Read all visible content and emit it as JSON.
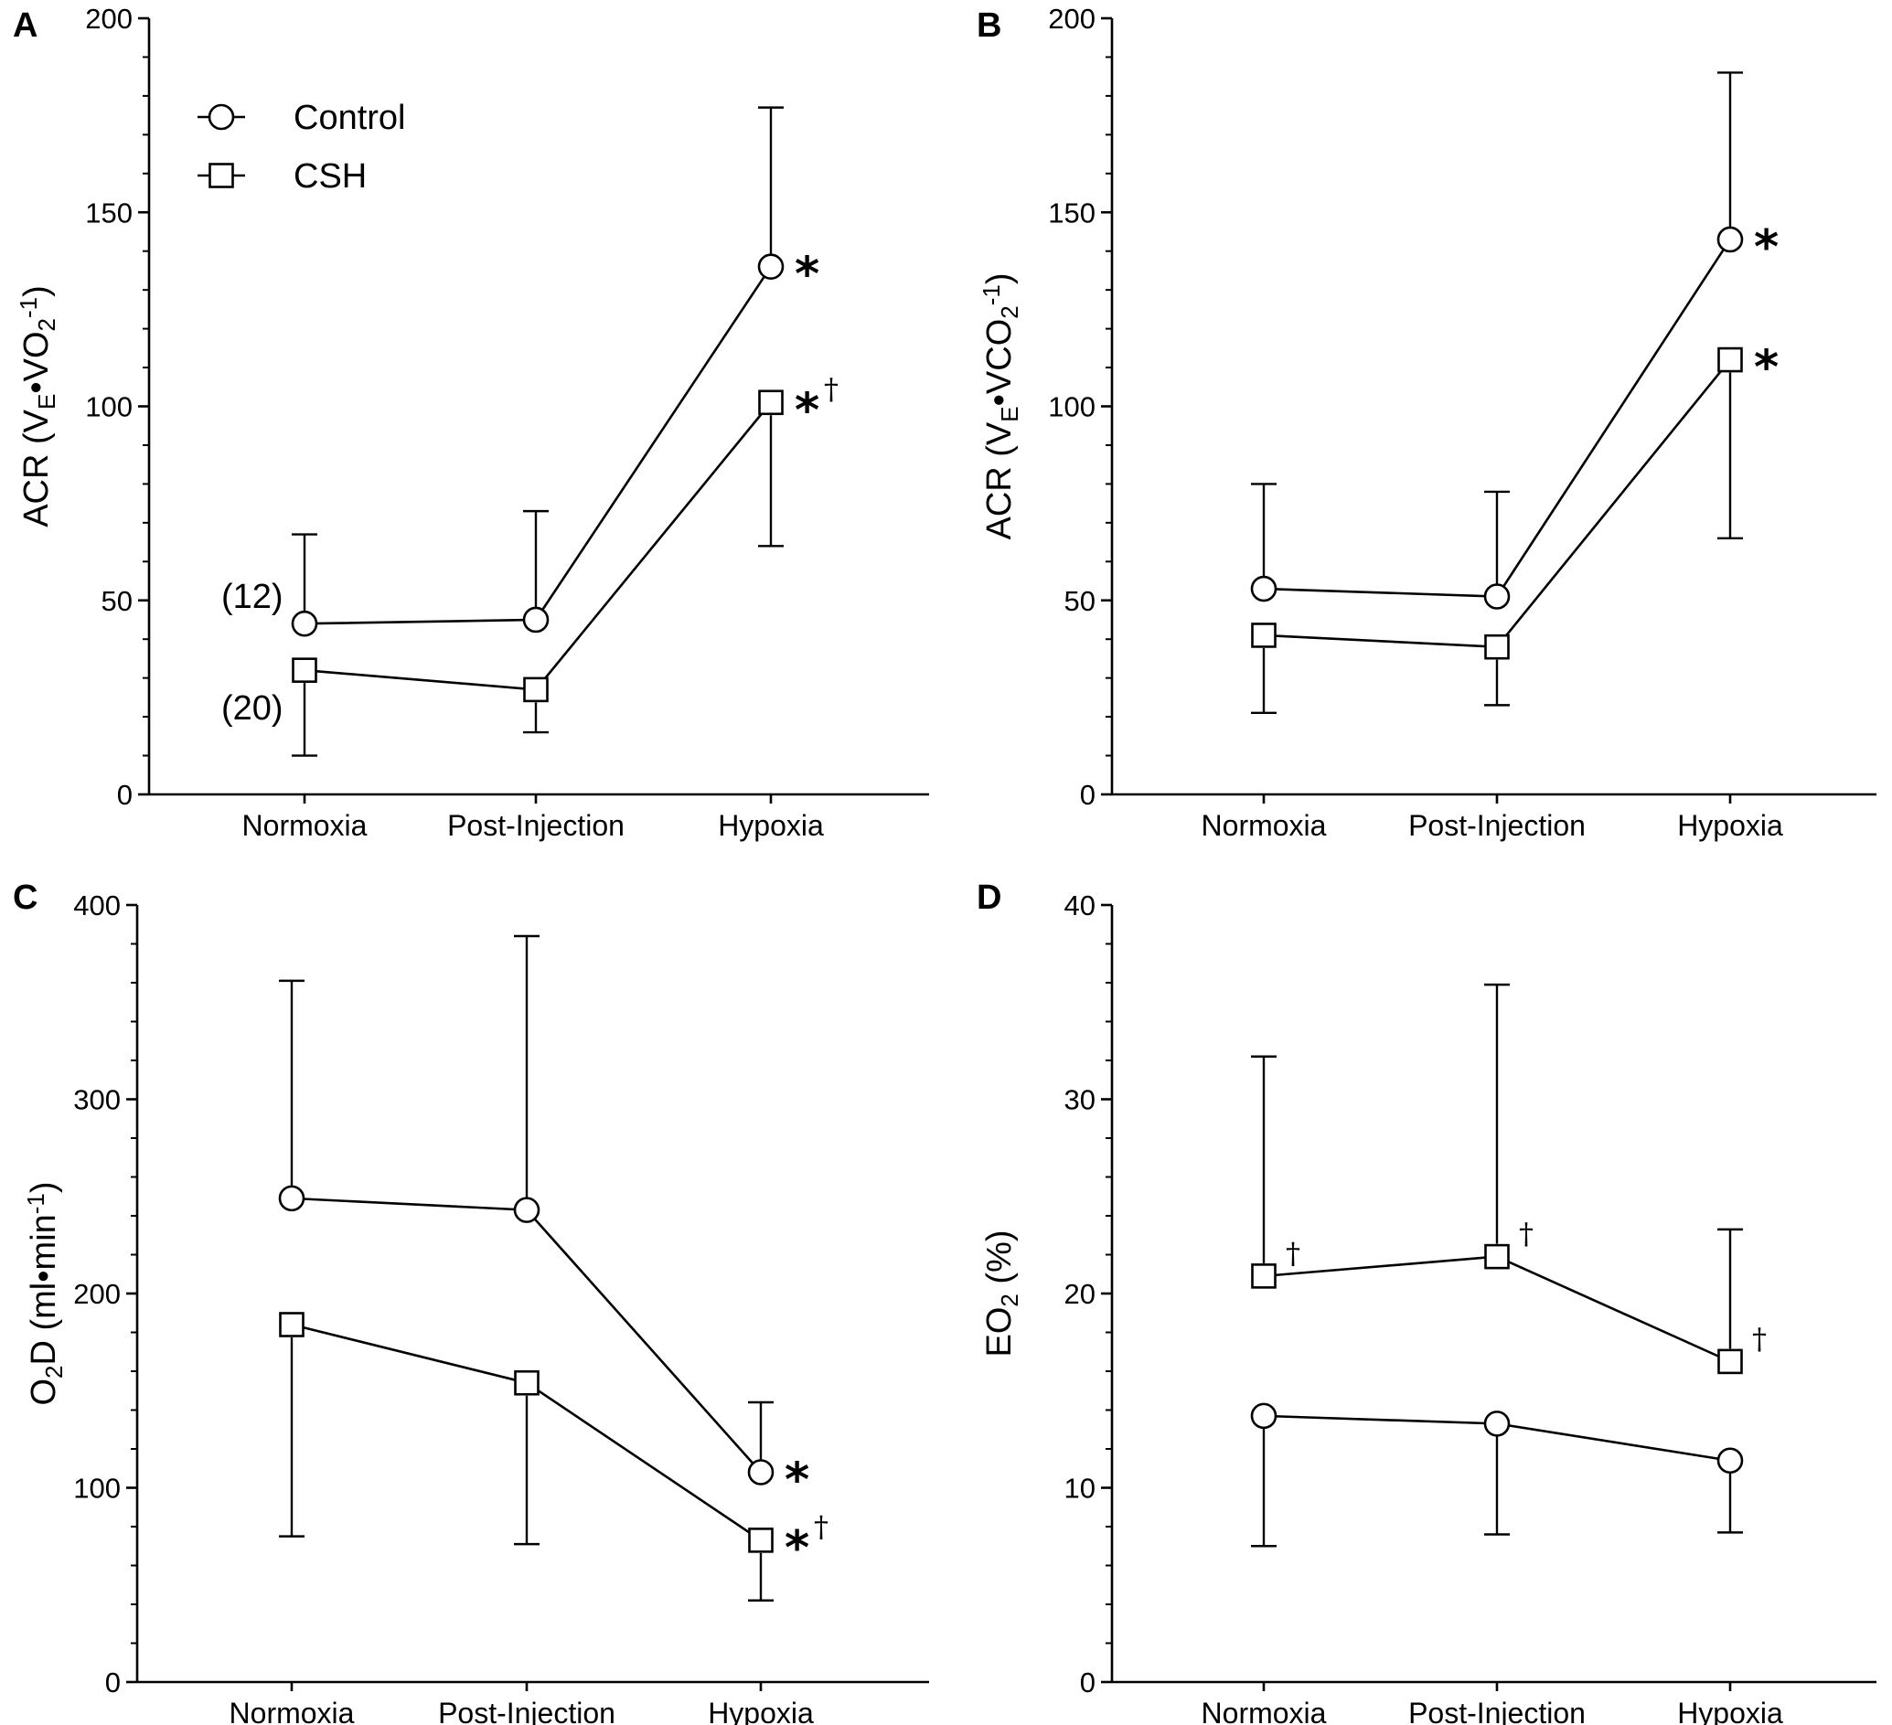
{
  "figure": {
    "legend": {
      "entries": [
        {
          "name": "Control",
          "marker": "circle"
        },
        {
          "name": "CSH",
          "marker": "square"
        }
      ]
    }
  },
  "chart_data": [
    {
      "panel": "A",
      "type": "line",
      "categories": [
        "Normoxia",
        "Post-Injection",
        "Hypoxia"
      ],
      "ylim": [
        0,
        200
      ],
      "yticks": [
        0,
        50,
        100,
        150,
        200
      ],
      "ylabel": {
        "prefix": "ACR (V",
        "sub1": "E",
        "mid": "•VO",
        "sub2": "2",
        "sup": "-1",
        "suffix": ")"
      },
      "legend_location": "top-left",
      "series": [
        {
          "name": "Control",
          "marker": "circle",
          "values": [
            44,
            45,
            136
          ],
          "error": [
            23,
            28,
            41
          ],
          "error_dir": [
            "up",
            "up",
            "up"
          ],
          "annotations": [
            "",
            "",
            "*"
          ],
          "dagger": [
            false,
            false,
            false
          ]
        },
        {
          "name": "CSH",
          "marker": "square",
          "values": [
            32,
            27,
            101
          ],
          "error": [
            22,
            11,
            37
          ],
          "error_dir": [
            "down",
            "down",
            "down"
          ],
          "annotations": [
            "",
            "",
            "*"
          ],
          "dagger": [
            false,
            false,
            true
          ]
        }
      ],
      "n_labels": [
        "(12)",
        "(20)"
      ]
    },
    {
      "panel": "B",
      "type": "line",
      "categories": [
        "Normoxia",
        "Post-Injection",
        "Hypoxia"
      ],
      "ylim": [
        0,
        200
      ],
      "yticks": [
        0,
        50,
        100,
        150,
        200
      ],
      "ylabel": {
        "prefix": "ACR (V",
        "sub1": "E",
        "mid": "•VCO",
        "sub2": "2",
        "sup": "-1",
        "suffix": ")"
      },
      "series": [
        {
          "name": "Control",
          "marker": "circle",
          "values": [
            53,
            51,
            143
          ],
          "error": [
            27,
            27,
            43
          ],
          "error_dir": [
            "up",
            "up",
            "up"
          ],
          "annotations": [
            "",
            "",
            "*"
          ],
          "dagger": [
            false,
            false,
            false
          ]
        },
        {
          "name": "CSH",
          "marker": "square",
          "values": [
            41,
            38,
            112
          ],
          "error": [
            20,
            15,
            46
          ],
          "error_dir": [
            "down",
            "down",
            "down"
          ],
          "annotations": [
            "",
            "",
            "*"
          ],
          "dagger": [
            false,
            false,
            false
          ]
        }
      ]
    },
    {
      "panel": "C",
      "type": "line",
      "categories": [
        "Normoxia",
        "Post-Injection",
        "Hypoxia"
      ],
      "ylim": [
        0,
        400
      ],
      "yticks": [
        0,
        100,
        200,
        300,
        400
      ],
      "ylabel": {
        "prefix": "O",
        "sub1": "2",
        "mid": "D (ml•min",
        "sub2": "",
        "sup": "-1",
        "suffix": ")"
      },
      "series": [
        {
          "name": "Control",
          "marker": "circle",
          "values": [
            249,
            243,
            108
          ],
          "error": [
            112,
            141,
            36
          ],
          "error_dir": [
            "up",
            "up",
            "up"
          ],
          "annotations": [
            "",
            "",
            "*"
          ],
          "dagger": [
            false,
            false,
            false
          ]
        },
        {
          "name": "CSH",
          "marker": "square",
          "values": [
            184,
            154,
            73
          ],
          "error": [
            109,
            83,
            31
          ],
          "error_dir": [
            "down",
            "down",
            "down"
          ],
          "annotations": [
            "",
            "",
            "*"
          ],
          "dagger": [
            false,
            false,
            true
          ]
        }
      ]
    },
    {
      "panel": "D",
      "type": "line",
      "categories": [
        "Normoxia",
        "Post-Injection",
        "Hypoxia"
      ],
      "ylim": [
        0,
        40
      ],
      "yticks": [
        0,
        10,
        20,
        30,
        40
      ],
      "ylabel": {
        "prefix": "EO",
        "sub1": "2",
        "mid": " (%)",
        "sub2": "",
        "sup": "",
        "suffix": ""
      },
      "series": [
        {
          "name": "Control",
          "marker": "circle",
          "values": [
            13.7,
            13.3,
            11.4
          ],
          "error": [
            6.7,
            5.7,
            3.7
          ],
          "error_dir": [
            "down",
            "down",
            "down"
          ],
          "annotations": [
            "",
            "",
            ""
          ],
          "dagger": [
            false,
            false,
            false
          ]
        },
        {
          "name": "CSH",
          "marker": "square",
          "values": [
            20.9,
            21.9,
            16.5
          ],
          "error": [
            11.3,
            14.0,
            6.8
          ],
          "error_dir": [
            "up",
            "up",
            "up"
          ],
          "annotations": [
            "",
            "",
            ""
          ],
          "dagger": [
            true,
            true,
            true
          ]
        }
      ]
    }
  ]
}
